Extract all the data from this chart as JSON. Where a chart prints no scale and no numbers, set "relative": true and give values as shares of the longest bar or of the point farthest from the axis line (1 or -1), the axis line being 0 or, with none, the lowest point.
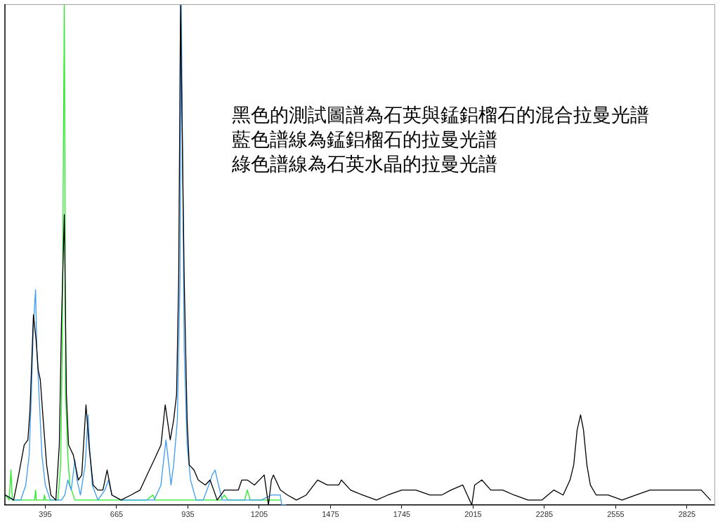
{
  "chart_data": {
    "type": "line",
    "relative": true,
    "tick_labels": "x",
    "xlim": [
      242,
      2929
    ],
    "xticks": [
      395,
      665,
      935,
      1205,
      1475,
      1745,
      2015,
      2285,
      2555,
      2825
    ],
    "annotations": [
      "黑色的測試圖譜為石英與錳鋁榴石的混合拉曼光譜",
      "藍色譜線為錳鋁榴石的拉曼光譜",
      "綠色譜線為石英水晶的拉曼光譜"
    ],
    "series": [
      {
        "color": "#000000",
        "x": [
          244,
          275,
          294,
          315,
          329,
          337,
          350,
          360,
          368,
          376,
          387,
          400,
          416,
          435,
          448,
          456,
          467,
          475,
          483,
          501,
          520,
          533,
          549,
          562,
          576,
          594,
          613,
          629,
          647,
          682,
          719,
          754,
          780,
          807,
          833,
          849,
          868,
          881,
          892,
          900,
          907,
          921,
          932,
          940,
          958,
          974,
          1001,
          1019,
          1046,
          1073,
          1099,
          1126,
          1139,
          1160,
          1187,
          1224,
          1240,
          1251,
          1259,
          1285,
          1312,
          1346,
          1383,
          1426,
          1463,
          1506,
          1516,
          1551,
          1596,
          1649,
          1692,
          1745,
          1798,
          1851,
          1896,
          1931,
          1976,
          2010,
          2021,
          2048,
          2082,
          2101,
          2127,
          2170,
          2223,
          2276,
          2321,
          2356,
          2382,
          2396,
          2409,
          2422,
          2433,
          2446,
          2459,
          2481,
          2526,
          2579,
          2632,
          2685,
          2738,
          2792,
          2845,
          2879,
          2914
        ],
        "values": [
          0.02,
          0.01,
          0.06,
          0.12,
          0.13,
          0.19,
          0.38,
          0.33,
          0.27,
          0.25,
          0.17,
          0.08,
          0.02,
          0.01,
          0.12,
          0.36,
          0.58,
          0.22,
          0.12,
          0.1,
          0.05,
          0.06,
          0.2,
          0.11,
          0.04,
          0.03,
          0.03,
          0.07,
          0.02,
          0.01,
          0.02,
          0.03,
          0.06,
          0.09,
          0.12,
          0.2,
          0.13,
          0.17,
          0.22,
          0.45,
          1,
          0.45,
          0.17,
          0.08,
          0.07,
          0.05,
          0.04,
          0.05,
          0.01,
          0.03,
          0.03,
          0.03,
          0.05,
          0.05,
          0.04,
          0.06,
          0.0,
          0.05,
          0.06,
          0.03,
          0.02,
          0.01,
          0.02,
          0.05,
          0.04,
          0.04,
          0.05,
          0.03,
          0.02,
          0.01,
          0.02,
          0.03,
          0.03,
          0.02,
          0.02,
          0.03,
          0.04,
          0.0,
          0.04,
          0.05,
          0.03,
          0.03,
          0.03,
          0.02,
          0.01,
          0.01,
          0.03,
          0.02,
          0.05,
          0.08,
          0.15,
          0.18,
          0.15,
          0.08,
          0.04,
          0.02,
          0.02,
          0.01,
          0.02,
          0.03,
          0.03,
          0.03,
          0.03,
          0.03,
          0.01
        ]
      },
      {
        "color": "#3d9bf5",
        "x": [
          244,
          275,
          302,
          321,
          334,
          342,
          350,
          358,
          363,
          374,
          382,
          395,
          414,
          435,
          456,
          469,
          480,
          493,
          507,
          515,
          528,
          546,
          557,
          562,
          573,
          594,
          621,
          634,
          647,
          682,
          754,
          807,
          833,
          841,
          852,
          863,
          871,
          881,
          895,
          905,
          910,
          921,
          932,
          945,
          966,
          993,
          1014,
          1027,
          1038,
          1051,
          1065,
          1099,
          1171,
          1213,
          1251,
          1285,
          1290,
          1306
        ],
        "values": [
          0.02,
          0.01,
          0.01,
          0.04,
          0.1,
          0.22,
          0.36,
          0.43,
          0.31,
          0.19,
          0.1,
          0.04,
          0.01,
          0.01,
          0.01,
          0.02,
          0.05,
          0.03,
          0.09,
          0.05,
          0.02,
          0.08,
          0.18,
          0.12,
          0.04,
          0.01,
          0.03,
          0.05,
          0.02,
          0.01,
          0.01,
          0.01,
          0.04,
          0.08,
          0.13,
          0.08,
          0.04,
          0.08,
          0.17,
          0.45,
          1,
          0.31,
          0.12,
          0.05,
          0.01,
          0.01,
          0.04,
          0.06,
          0.07,
          0.04,
          0.01,
          0.01,
          0.01,
          0.01,
          0.02,
          0.02,
          0.0,
          0.0
        ]
      },
      {
        "color": "#22ee22",
        "x": [
          244,
          258,
          265,
          270,
          347,
          355,
          358,
          361,
          389,
          392,
          395,
          443,
          453,
          459,
          467,
          472,
          480,
          488,
          507,
          533,
          780,
          802,
          812,
          1060,
          1073,
          1086,
          1150,
          1160,
          1171,
          1224,
          1285
        ],
        "values": [
          0.02,
          0.01,
          0.07,
          0.01,
          0.01,
          0.01,
          0.03,
          0.01,
          0.01,
          0.02,
          0.01,
          0.01,
          0.08,
          0.31,
          1,
          0.22,
          0.1,
          0.04,
          0.01,
          0.01,
          0.01,
          0.02,
          0.01,
          0.01,
          0.02,
          0.01,
          0.01,
          0.03,
          0.01,
          0.01,
          0.01
        ]
      }
    ]
  }
}
